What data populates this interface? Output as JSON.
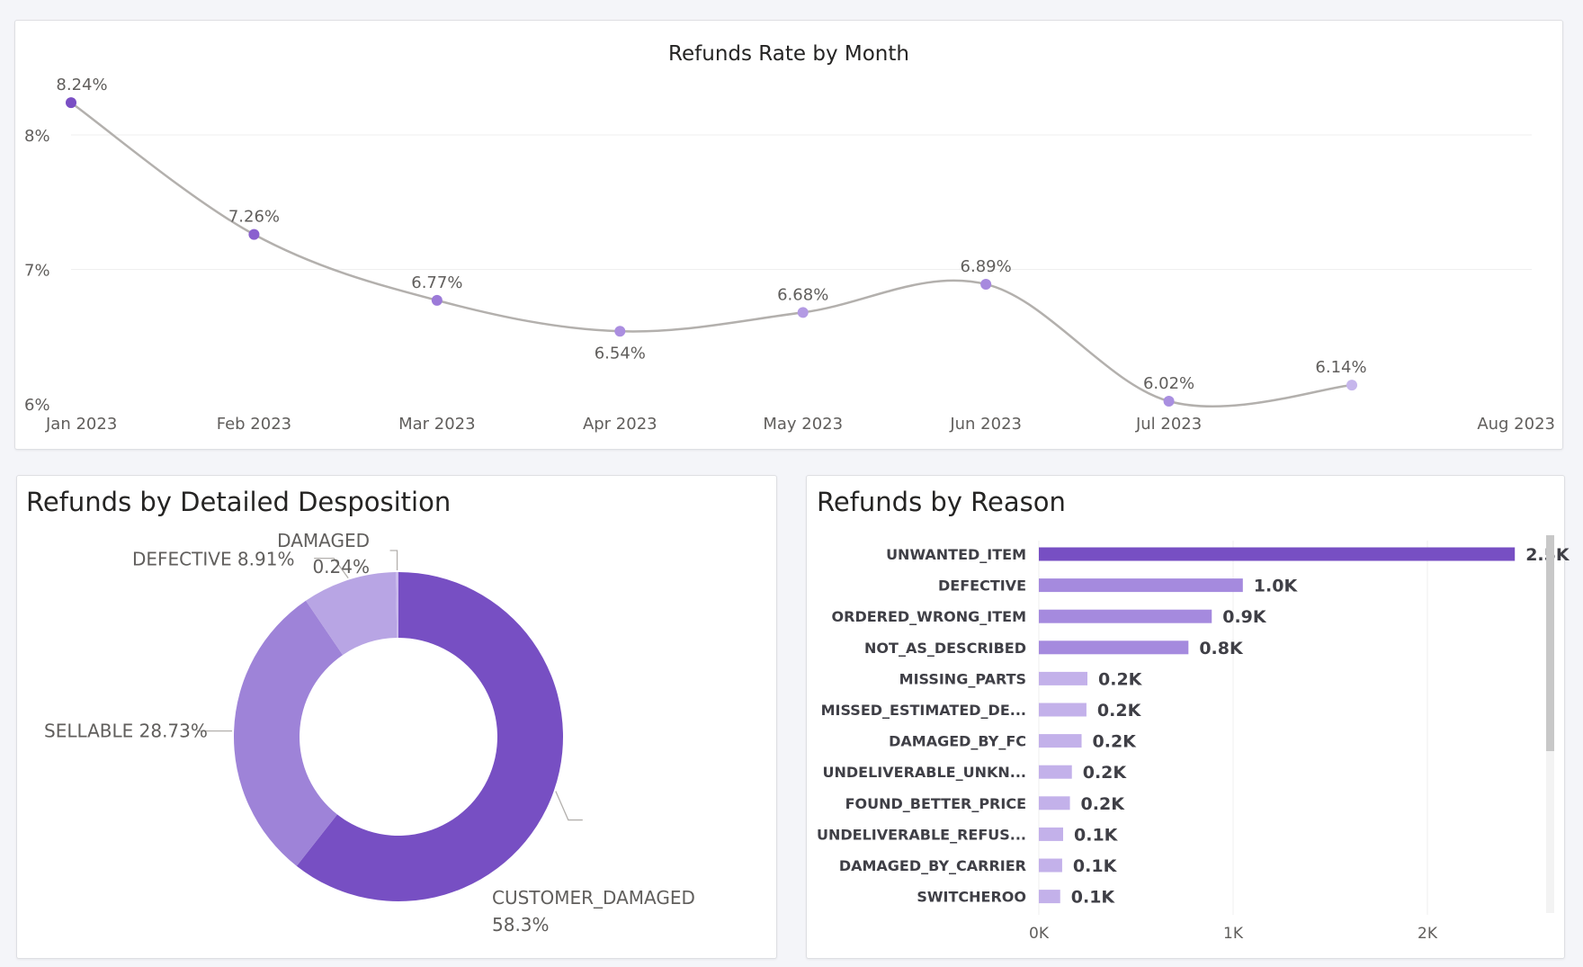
{
  "chart_data": [
    {
      "type": "line",
      "title": "Refunds Rate by Month",
      "x": [
        "Jan 2023",
        "Feb 2023",
        "Mar 2023",
        "Apr 2023",
        "May 2023",
        "Jun 2023",
        "Jul 2023",
        "Aug 2023"
      ],
      "values": [
        8.24,
        7.26,
        6.77,
        6.54,
        6.68,
        6.89,
        6.02,
        6.14
      ],
      "data_labels": [
        "8.24%",
        "7.26%",
        "6.77%",
        "6.54%",
        "6.68%",
        "6.89%",
        "6.02%",
        "6.14%"
      ],
      "y_ticks": [
        6,
        7,
        8
      ],
      "y_tick_labels": [
        "6%",
        "7%",
        "8%"
      ],
      "ylim": [
        6,
        8.5
      ],
      "grid": true,
      "line_color": "#b3b0ad",
      "marker_colors": [
        "#7a4fc4",
        "#8a60cf",
        "#9c7ad8",
        "#ab8ee0",
        "#b39ae3",
        "#a789de",
        "#a98fe0",
        "#c6b6ec"
      ]
    },
    {
      "type": "pie",
      "variant": "donut",
      "title": "Refunds by Detailed Desposition",
      "labels": [
        "CUSTOMER_DAMAGED",
        "SELLABLE",
        "DEFECTIVE",
        "DAMAGED"
      ],
      "values": [
        58.3,
        28.73,
        8.91,
        0.24
      ],
      "value_labels": [
        "58.3%",
        "28.73%",
        "8.91%",
        "0.24%"
      ],
      "colors": [
        "#774fc3",
        "#9e83d8",
        "#b8a5e4",
        "#c9b9ec"
      ]
    },
    {
      "type": "bar",
      "orientation": "horizontal",
      "title": "Refunds by Reason",
      "categories": [
        "UNWANTED_ITEM",
        "DEFECTIVE",
        "ORDERED_WRONG_ITEM",
        "NOT_AS_DESCRIBED",
        "MISSING_PARTS",
        "MISSED_ESTIMATED_DE...",
        "DAMAGED_BY_FC",
        "UNDELIVERABLE_UNKN...",
        "FOUND_BETTER_PRICE",
        "UNDELIVERABLE_REFUS...",
        "DAMAGED_BY_CARRIER",
        "SWITCHEROO"
      ],
      "values": [
        2450,
        1050,
        890,
        770,
        250,
        245,
        220,
        170,
        160,
        125,
        120,
        110
      ],
      "value_labels": [
        "2.5K",
        "1.0K",
        "0.9K",
        "0.8K",
        "0.2K",
        "0.2K",
        "0.2K",
        "0.2K",
        "0.2K",
        "0.1K",
        "0.1K",
        "0.1K"
      ],
      "x_ticks": [
        0,
        1000,
        2000
      ],
      "x_tick_labels": [
        "0K",
        "1K",
        "2K"
      ],
      "xlim": [
        0,
        2650
      ],
      "grid": true,
      "colors": [
        "#774fc3",
        "#a58ade",
        "#a58ade",
        "#a58ade",
        "#c3b1ea",
        "#c3b1ea",
        "#c3b1ea",
        "#c3b1ea",
        "#c3b1ea",
        "#c3b1ea",
        "#c3b1ea",
        "#c3b1ea"
      ]
    }
  ]
}
